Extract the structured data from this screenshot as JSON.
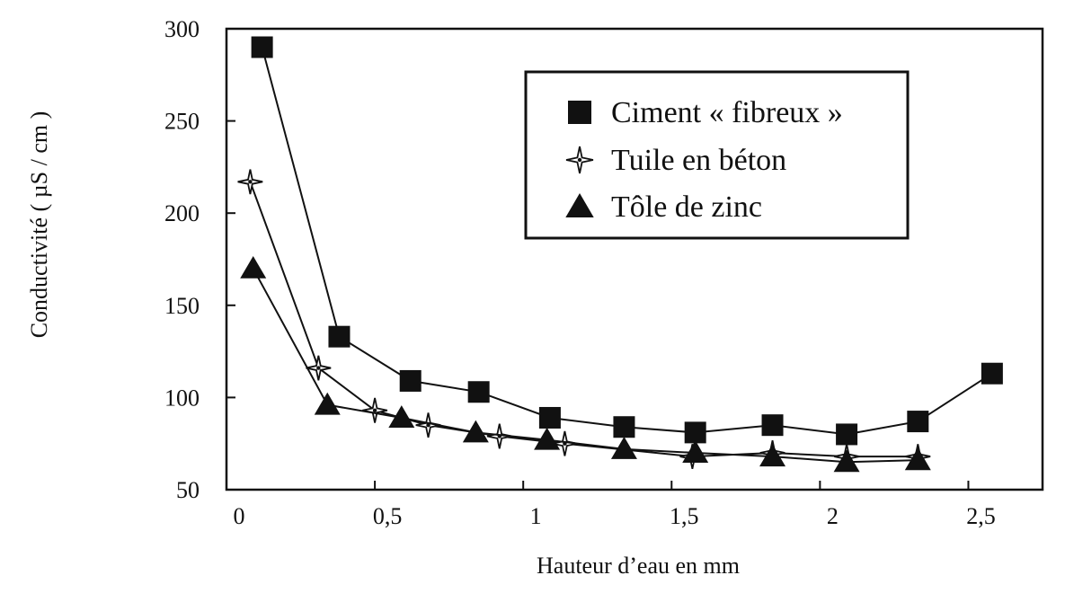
{
  "chart_data": {
    "type": "line",
    "title": "",
    "xlabel": "Hauteur d’eau en mm",
    "ylabel": "Conductivité ( µS / cm )",
    "xlim": [
      0,
      2.75
    ],
    "ylim": [
      50,
      300
    ],
    "x_ticks": [
      0,
      0.5,
      1,
      1.5,
      2,
      2.5
    ],
    "x_tick_labels": [
      "0",
      "0,5",
      "1",
      "1,5",
      "2",
      "2,5"
    ],
    "y_ticks": [
      50,
      100,
      150,
      200,
      250,
      300
    ],
    "y_tick_labels": [
      "50",
      "100",
      "150",
      "200",
      "250",
      "300"
    ],
    "grid": false,
    "legend_position": "top-right",
    "series": [
      {
        "name": "Ciment « fibreux »",
        "marker": "square",
        "points": [
          {
            "x": 0.12,
            "y": 290
          },
          {
            "x": 0.38,
            "y": 133
          },
          {
            "x": 0.62,
            "y": 109
          },
          {
            "x": 0.85,
            "y": 103
          },
          {
            "x": 1.09,
            "y": 89
          },
          {
            "x": 1.34,
            "y": 84
          },
          {
            "x": 1.58,
            "y": 81
          },
          {
            "x": 1.84,
            "y": 85
          },
          {
            "x": 2.09,
            "y": 80
          },
          {
            "x": 2.33,
            "y": 87
          },
          {
            "x": 2.58,
            "y": 113
          }
        ]
      },
      {
        "name": "Tuile en béton",
        "marker": "star",
        "points": [
          {
            "x": 0.08,
            "y": 217
          },
          {
            "x": 0.31,
            "y": 116
          },
          {
            "x": 0.5,
            "y": 93
          },
          {
            "x": 0.68,
            "y": 85
          },
          {
            "x": 0.92,
            "y": 79
          },
          {
            "x": 1.14,
            "y": 75
          },
          {
            "x": 1.57,
            "y": 68
          },
          {
            "x": 1.84,
            "y": 70
          },
          {
            "x": 2.09,
            "y": 68
          },
          {
            "x": 2.33,
            "y": 68
          }
        ]
      },
      {
        "name": "Tôle de zinc",
        "marker": "triangle",
        "points": [
          {
            "x": 0.09,
            "y": 170
          },
          {
            "x": 0.34,
            "y": 96
          },
          {
            "x": 0.59,
            "y": 89
          },
          {
            "x": 0.84,
            "y": 81
          },
          {
            "x": 1.08,
            "y": 77
          },
          {
            "x": 1.34,
            "y": 72
          },
          {
            "x": 1.58,
            "y": 70
          },
          {
            "x": 1.84,
            "y": 68
          },
          {
            "x": 2.09,
            "y": 65
          },
          {
            "x": 2.33,
            "y": 66
          }
        ]
      }
    ]
  }
}
